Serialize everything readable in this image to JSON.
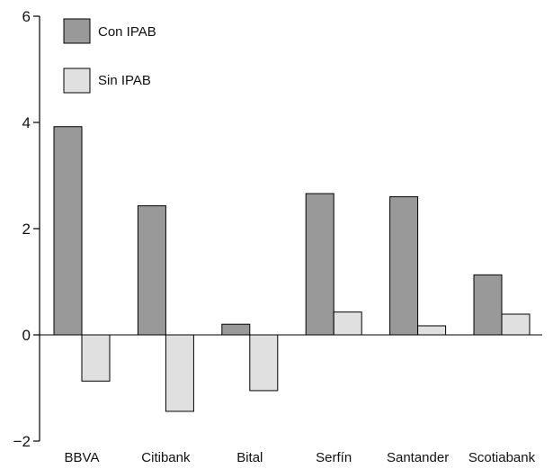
{
  "chart_data": {
    "type": "bar",
    "title": "",
    "xlabel": "",
    "ylabel": "",
    "ylim": [
      -2,
      6
    ],
    "yticks": [
      -2,
      0,
      2,
      4,
      6
    ],
    "ytick_labels": [
      "−2",
      "0",
      "2",
      "4",
      "6"
    ],
    "grid": false,
    "legend_position": "top-left",
    "categories": [
      "BBVA",
      "Citibank",
      "Bital",
      "Serfín",
      "Santander",
      "Scotiabank"
    ],
    "series": [
      {
        "name": "Con IPAB",
        "color": "#999999",
        "values": [
          3.92,
          2.43,
          0.2,
          2.66,
          2.6,
          1.13
        ]
      },
      {
        "name": "Sin IPAB",
        "color": "#e0e0e0",
        "values": [
          -0.87,
          -1.44,
          -1.05,
          0.43,
          0.17,
          0.39
        ]
      }
    ]
  }
}
